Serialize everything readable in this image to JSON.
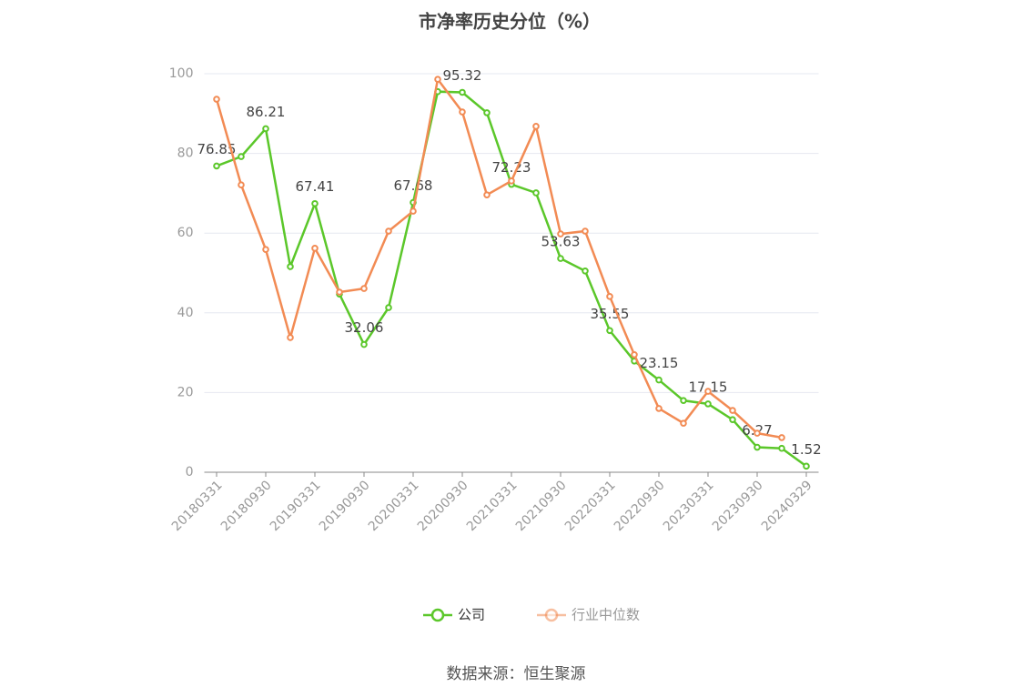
{
  "chart_data": {
    "type": "line",
    "title": "市净率历史分位（%）",
    "categories": [
      "20180331",
      null,
      "20180930",
      null,
      "20190331",
      null,
      "20190930",
      null,
      "20200331",
      null,
      "20200930",
      null,
      "20210331",
      null,
      "20210930",
      null,
      "20220331",
      null,
      "20220930",
      null,
      "20230331",
      null,
      "20230930",
      null,
      "20240329"
    ],
    "series": [
      {
        "name": "公司",
        "color": "#5bc72a",
        "values": [
          76.85,
          79.2,
          86.21,
          51.6,
          67.41,
          44.7,
          32.06,
          41.3,
          67.68,
          95.5,
          95.32,
          90.2,
          72.23,
          70.1,
          53.63,
          50.5,
          35.55,
          27.9,
          23.15,
          18.0,
          17.15,
          13.2,
          6.27,
          6.0,
          1.52
        ],
        "value_labels": [
          "76.85",
          null,
          "86.21",
          null,
          "67.41",
          null,
          "32.06",
          null,
          "67.68",
          null,
          "95.32",
          null,
          "72.23",
          null,
          "53.63",
          null,
          "35.55",
          null,
          "23.15",
          null,
          "17.15",
          null,
          "6.27",
          null,
          "1.52"
        ]
      },
      {
        "name": "行业中位数",
        "color": "#f28b54",
        "values": [
          93.6,
          72.1,
          55.9,
          33.8,
          56.2,
          45.2,
          46.1,
          60.5,
          65.5,
          98.6,
          90.4,
          69.6,
          73.1,
          86.8,
          59.8,
          60.5,
          44.1,
          29.5,
          16.0,
          12.3,
          20.3,
          15.5,
          9.8,
          8.7,
          null
        ]
      }
    ],
    "ylim": [
      0,
      100
    ],
    "yticks": [
      0,
      20,
      40,
      60,
      80,
      100
    ],
    "grid": true,
    "legend": "bottom",
    "source": "数据来源：恒生聚源"
  }
}
